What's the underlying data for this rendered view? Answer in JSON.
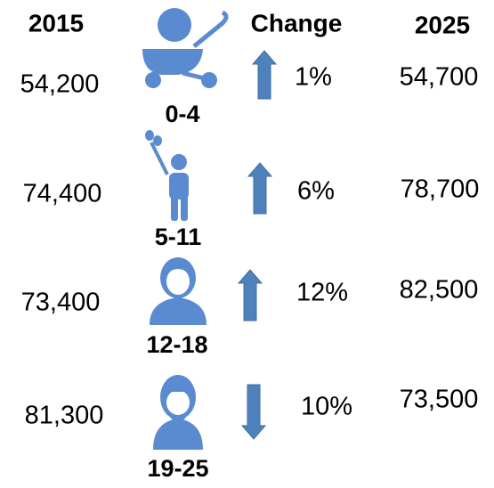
{
  "header": {
    "year_start": "2015",
    "change": "Change",
    "year_end": "2025"
  },
  "rows": [
    {
      "age_group": "0-4",
      "value_2015": "54,200",
      "change": "1%",
      "value_2025": "54,700"
    },
    {
      "age_group": "5-11",
      "value_2015": "74,400",
      "change": "6%",
      "value_2025": "78,700"
    },
    {
      "age_group": "12-18",
      "value_2015": "73,400",
      "change": "12%",
      "value_2025": "82,500"
    },
    {
      "age_group": "19-25",
      "value_2015": "81,300",
      "change": "10%",
      "value_2025": "73,500"
    }
  ]
}
